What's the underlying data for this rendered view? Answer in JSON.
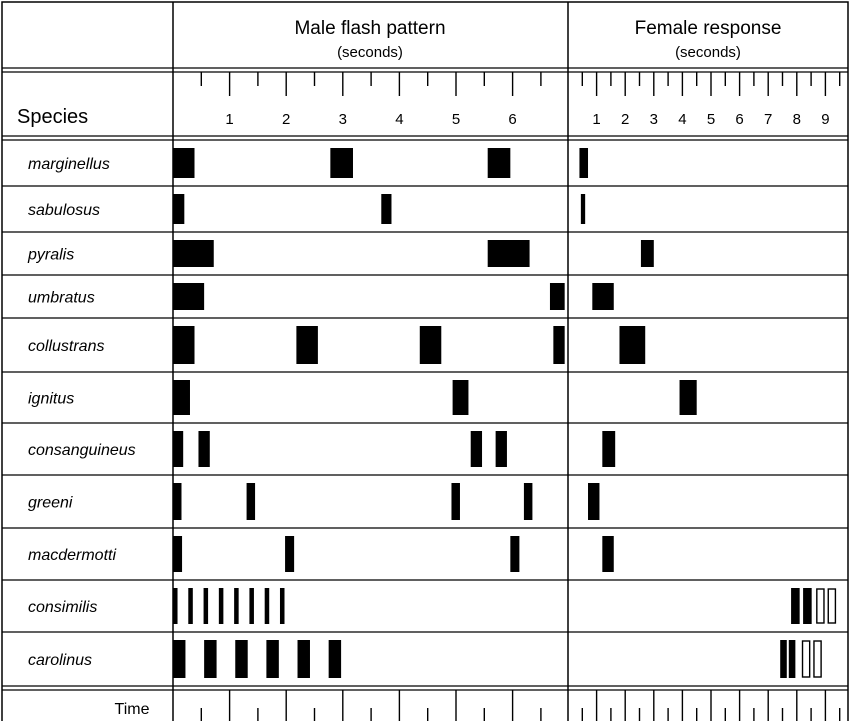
{
  "header": {
    "species_label": "Species",
    "male_title": "Male flash pattern",
    "male_subtitle": "(seconds)",
    "female_title": "Female response",
    "female_subtitle": "(seconds)",
    "time_label": "Time"
  },
  "male_axis": {
    "unit": "seconds",
    "tick_labels": [
      "1",
      "2",
      "3",
      "4",
      "5",
      "6"
    ]
  },
  "female_axis": {
    "unit": "seconds",
    "tick_labels": [
      "1",
      "2",
      "3",
      "4",
      "5",
      "6",
      "7",
      "8",
      "9"
    ]
  },
  "species": [
    {
      "name": "marginellus",
      "male": [
        [
          0.0,
          0.38
        ],
        [
          2.78,
          3.18
        ],
        [
          5.56,
          5.96
        ]
      ],
      "female": [
        [
          0.4,
          0.7
        ]
      ],
      "female_hollow": []
    },
    {
      "name": "sabulosus",
      "male": [
        [
          0.0,
          0.2
        ],
        [
          3.68,
          3.86
        ]
      ],
      "female": [
        [
          0.45,
          0.6
        ]
      ],
      "female_hollow": []
    },
    {
      "name": "pyralis",
      "male": [
        [
          0.0,
          0.72
        ],
        [
          5.56,
          6.3
        ]
      ],
      "female": [
        [
          2.55,
          3.0
        ]
      ],
      "female_hollow": []
    },
    {
      "name": "umbratus",
      "male": [
        [
          0.0,
          0.55
        ],
        [
          6.66,
          6.92
        ]
      ],
      "female": [
        [
          0.85,
          1.6
        ]
      ],
      "female_hollow": []
    },
    {
      "name": "collustrans",
      "male": [
        [
          0.0,
          0.38
        ],
        [
          2.18,
          2.56
        ],
        [
          4.36,
          4.74
        ],
        [
          6.72,
          6.92
        ]
      ],
      "female": [
        [
          1.8,
          2.7
        ]
      ],
      "female_hollow": []
    },
    {
      "name": "ignitus",
      "male": [
        [
          0.0,
          0.3
        ],
        [
          4.94,
          5.22
        ]
      ],
      "female": [
        [
          3.9,
          4.5
        ]
      ],
      "female_hollow": []
    },
    {
      "name": "consanguineus",
      "male": [
        [
          0.0,
          0.18
        ],
        [
          0.45,
          0.65
        ],
        [
          5.26,
          5.46
        ],
        [
          5.7,
          5.9
        ]
      ],
      "female": [
        [
          1.2,
          1.65
        ]
      ],
      "female_hollow": []
    },
    {
      "name": "greeni",
      "male": [
        [
          0.0,
          0.15
        ],
        [
          1.3,
          1.45
        ],
        [
          4.92,
          5.07
        ],
        [
          6.2,
          6.35
        ]
      ],
      "female": [
        [
          0.7,
          1.1
        ]
      ],
      "female_hollow": []
    },
    {
      "name": "macdermotti",
      "male": [
        [
          0.0,
          0.16
        ],
        [
          1.98,
          2.14
        ],
        [
          5.96,
          6.12
        ]
      ],
      "female": [
        [
          1.2,
          1.6
        ]
      ],
      "female_hollow": []
    },
    {
      "name": "consimilis",
      "male": [
        [
          0.0,
          0.08
        ],
        [
          0.27,
          0.35
        ],
        [
          0.54,
          0.62
        ],
        [
          0.81,
          0.89
        ],
        [
          1.08,
          1.16
        ],
        [
          1.35,
          1.43
        ],
        [
          1.62,
          1.7
        ],
        [
          1.89,
          1.97
        ]
      ],
      "female": [
        [
          7.8,
          8.1
        ],
        [
          8.22,
          8.52
        ]
      ],
      "female_hollow": [
        [
          8.7,
          8.95
        ],
        [
          9.1,
          9.35
        ]
      ]
    },
    {
      "name": "carolinus",
      "male": [
        [
          0.0,
          0.22
        ],
        [
          0.55,
          0.77
        ],
        [
          1.1,
          1.32
        ],
        [
          1.65,
          1.87
        ],
        [
          2.2,
          2.42
        ],
        [
          2.75,
          2.97
        ]
      ],
      "female": [
        [
          7.42,
          7.65
        ],
        [
          7.72,
          7.95
        ]
      ],
      "female_hollow": [
        [
          8.2,
          8.45
        ],
        [
          8.6,
          8.85
        ]
      ]
    }
  ]
}
